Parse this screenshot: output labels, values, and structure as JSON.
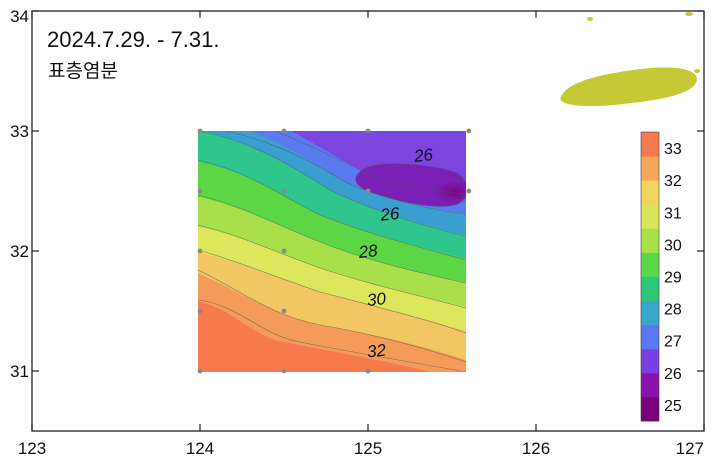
{
  "title": "2024.7.29. - 7.31.",
  "subtitle": "표층염분",
  "colors": {
    "frame": "#222222",
    "island": "#c6c936",
    "station": "#8a8a8a",
    "contour_line": "#555555"
  },
  "chart_data": {
    "type": "heatmap",
    "variable": "surface salinity",
    "x_ticks": [
      "123",
      "124",
      "125",
      "126",
      "127"
    ],
    "y_ticks": [
      "31",
      "32",
      "33",
      "34"
    ],
    "xlim": [
      123,
      127
    ],
    "ylim": [
      30.5,
      34
    ],
    "data_extent": {
      "lon": [
        124,
        125.6
      ],
      "lat": [
        31,
        33
      ]
    },
    "stations": [
      [
        124,
        33
      ],
      [
        124.5,
        33
      ],
      [
        125,
        33
      ],
      [
        125.6,
        33
      ],
      [
        124,
        32.5
      ],
      [
        124.5,
        32.5
      ],
      [
        125,
        32.5
      ],
      [
        125.6,
        32.5
      ],
      [
        124,
        32
      ],
      [
        124.5,
        32
      ],
      [
        124,
        31.5
      ],
      [
        124.5,
        31.5
      ],
      [
        124,
        31
      ],
      [
        124.5,
        31
      ],
      [
        125,
        31
      ]
    ],
    "contour_labels": [
      {
        "text": "26",
        "lon": 125.33,
        "lat": 32.8
      },
      {
        "text": "26",
        "lon": 125.13,
        "lat": 32.31
      },
      {
        "text": "28",
        "lon": 125.0,
        "lat": 32.0
      },
      {
        "text": "30",
        "lon": 125.05,
        "lat": 31.6
      },
      {
        "text": "32",
        "lon": 125.05,
        "lat": 31.17
      }
    ],
    "legend": {
      "min": 24.5,
      "max": 33.5,
      "labels": [
        "33",
        "32",
        "31",
        "30",
        "29",
        "28",
        "27",
        "26",
        "25"
      ],
      "colors": [
        "#7a0077",
        "#8a12a8",
        "#7a3fe0",
        "#5b78f0",
        "#3aa6c8",
        "#2ec77a",
        "#58d84a",
        "#a9e04a",
        "#d8e65a",
        "#efd460",
        "#f4a85c",
        "#f7794e"
      ]
    }
  }
}
